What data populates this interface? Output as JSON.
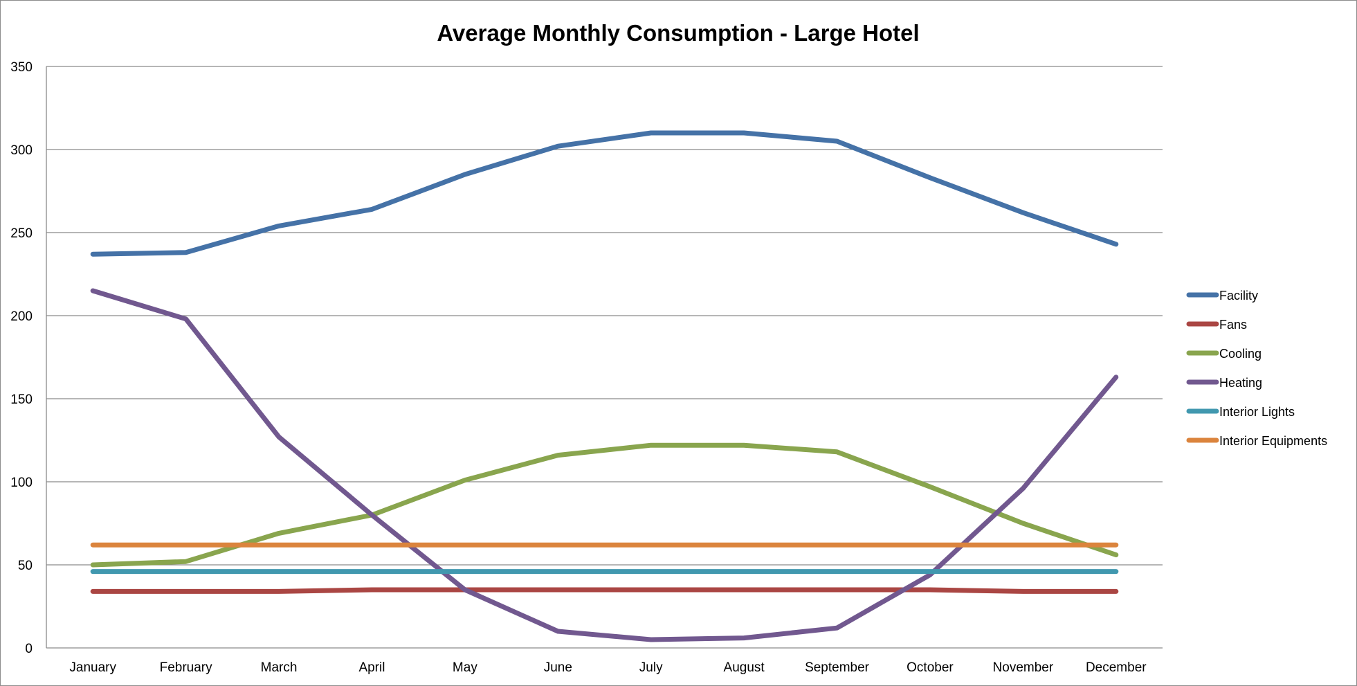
{
  "chart_data": {
    "type": "line",
    "title": "Average Monthly Consumption - Large Hotel",
    "xlabel": "",
    "ylabel": "",
    "ylim": [
      0,
      350
    ],
    "yticks": [
      0,
      50,
      100,
      150,
      200,
      250,
      300,
      350
    ],
    "grid": true,
    "legend_position": "right",
    "categories": [
      "January",
      "February",
      "March",
      "April",
      "May",
      "June",
      "July",
      "August",
      "September",
      "October",
      "November",
      "December"
    ],
    "series": [
      {
        "name": "Facility",
        "color": "#4572a7",
        "values": [
          237,
          238,
          254,
          264,
          285,
          302,
          310,
          310,
          305,
          283,
          262,
          243
        ]
      },
      {
        "name": "Fans",
        "color": "#aa4643",
        "values": [
          34,
          34,
          34,
          35,
          35,
          35,
          35,
          35,
          35,
          35,
          34,
          34
        ]
      },
      {
        "name": "Cooling",
        "color": "#89a54e",
        "values": [
          50,
          52,
          69,
          80,
          101,
          116,
          122,
          122,
          118,
          97,
          75,
          56
        ]
      },
      {
        "name": "Heating",
        "color": "#71588f",
        "values": [
          215,
          198,
          127,
          80,
          35,
          10,
          5,
          6,
          12,
          44,
          96,
          163
        ]
      },
      {
        "name": "Interior Lights",
        "color": "#4198af",
        "values": [
          46,
          46,
          46,
          46,
          46,
          46,
          46,
          46,
          46,
          46,
          46,
          46
        ]
      },
      {
        "name": "Interior Equipments",
        "color": "#db843d",
        "values": [
          62,
          62,
          62,
          62,
          62,
          62,
          62,
          62,
          62,
          62,
          62,
          62
        ]
      }
    ]
  }
}
